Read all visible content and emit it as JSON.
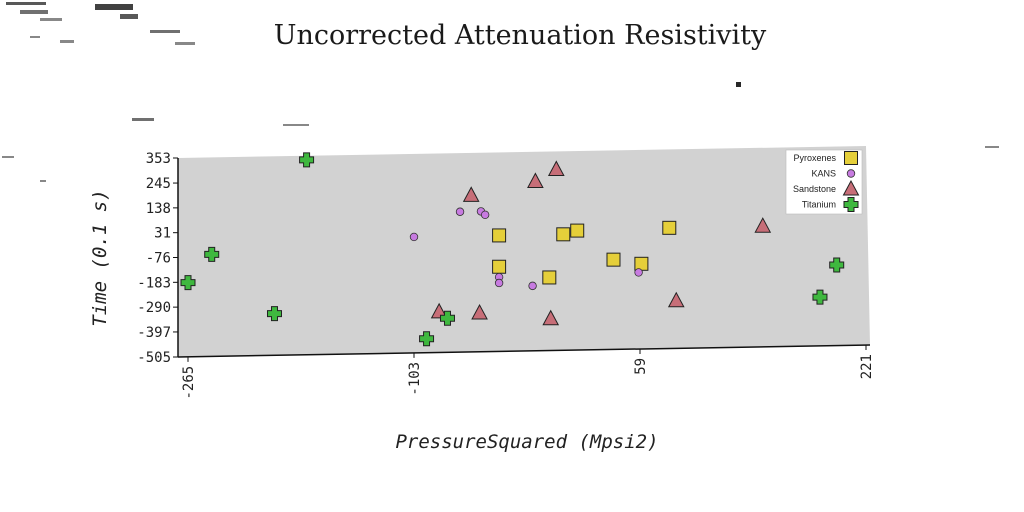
{
  "chart_data": {
    "type": "scatter",
    "title": "Uncorrected Attenuation Resistivity",
    "xlabel": "PressureSquared (Mpsi2)",
    "ylabel": "Time (0.1 s)",
    "xlim": [
      -265,
      221
    ],
    "ylim": [
      -505,
      353
    ],
    "x_ticks": [
      "-265",
      "-103",
      "59",
      "221"
    ],
    "y_ticks": [
      "353",
      "245",
      "138",
      "31",
      "-76",
      "-183",
      "-290",
      "-397",
      "-505"
    ],
    "grid": false,
    "legend_position": "top-right",
    "series": [
      {
        "name": "Pyroxenes",
        "marker": "square",
        "color": "#e5cf3a",
        "points": [
          [
            -42,
            -5
          ],
          [
            -42,
            -140
          ],
          [
            -6,
            -190
          ],
          [
            4,
            -5
          ],
          [
            14,
            10
          ],
          [
            40,
            -118
          ],
          [
            60,
            -138
          ],
          [
            80,
            15
          ]
        ]
      },
      {
        "name": "KANS",
        "marker": "circle",
        "color": "#c77be0",
        "points": [
          [
            -103,
            -5
          ],
          [
            -70,
            100
          ],
          [
            -55,
            100
          ],
          [
            -52,
            85
          ],
          [
            -42,
            -185
          ],
          [
            -42,
            -210
          ],
          [
            -18,
            -225
          ],
          [
            58,
            -175
          ]
        ]
      },
      {
        "name": "Sandstone",
        "marker": "triangle",
        "color": "#c76e78",
        "points": [
          [
            -62,
            170
          ],
          [
            -16,
            225
          ],
          [
            -1,
            275
          ],
          [
            -85,
            -330
          ],
          [
            -56,
            -338
          ],
          [
            -5,
            -368
          ],
          [
            85,
            -300
          ],
          [
            147,
            15
          ]
        ]
      },
      {
        "name": "Titanium",
        "marker": "plus",
        "color": "#3fb83f",
        "points": [
          [
            -265,
            -185
          ],
          [
            -248,
            -65
          ],
          [
            -203,
            -325
          ],
          [
            -180,
            335
          ],
          [
            -94,
            -445
          ],
          [
            -79,
            -358
          ],
          [
            188,
            -295
          ],
          [
            200,
            -158
          ]
        ]
      }
    ]
  }
}
